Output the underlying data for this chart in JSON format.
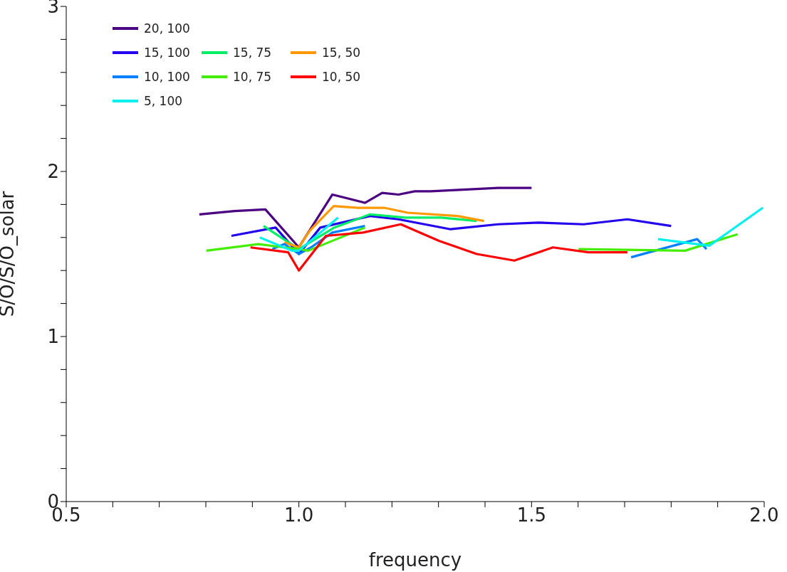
{
  "chart_data": {
    "type": "line",
    "xlabel": "frequency",
    "ylabel": "S/O/S/O_solar",
    "xlim": [
      0.5,
      2.0
    ],
    "ylim": [
      0,
      3
    ],
    "xticks": [
      0.5,
      {
        "value": 0.6,
        "label": null
      },
      {
        "value": 0.7,
        "label": null
      },
      {
        "value": 0.8,
        "label": null
      },
      {
        "value": 0.9,
        "label": null
      },
      {
        "value": 1,
        "label": "1.0"
      },
      {
        "value": 1.1,
        "label": null
      },
      {
        "value": 1.2,
        "label": null
      },
      {
        "value": 1.3,
        "label": null
      },
      {
        "value": 1.4,
        "label": null
      },
      1.5,
      {
        "value": 1.6,
        "label": null
      },
      {
        "value": 1.7,
        "label": null
      },
      {
        "value": 1.8,
        "label": null
      },
      {
        "value": 1.9,
        "label": null
      },
      {
        "value": 2,
        "label": "2.0"
      }
    ],
    "yticks": [
      0,
      {
        "value": 0.2,
        "label": null
      },
      {
        "value": 0.4,
        "label": null
      },
      {
        "value": 0.6,
        "label": null
      },
      {
        "value": 0.8,
        "label": null
      },
      1,
      {
        "value": 1.2,
        "label": null
      },
      {
        "value": 1.4,
        "label": null
      },
      {
        "value": 1.6,
        "label": null
      },
      {
        "value": 1.8,
        "label": null
      },
      2,
      {
        "value": 2.2,
        "label": null
      },
      {
        "value": 2.4,
        "label": null
      },
      {
        "value": 2.6,
        "label": null
      },
      {
        "value": 2.8,
        "label": null
      },
      3
    ],
    "grid": false,
    "legend": "top left",
    "marker": "none",
    "line_style": "solid",
    "series": [
      {
        "name": "20, 100",
        "color": "#4b0082",
        "x": [
          0.786,
          0.862,
          0.928,
          1.0,
          1.072,
          1.142,
          1.179,
          1.214,
          1.249,
          1.283,
          1.428,
          1.5
        ],
        "values": [
          1.74,
          1.76,
          1.77,
          1.54,
          1.86,
          1.81,
          1.87,
          1.86,
          1.88,
          1.88,
          1.9,
          1.9
        ]
      },
      {
        "name": "15, 100",
        "color": "#2200ee",
        "x": [
          0.855,
          0.95,
          1.0,
          1.046,
          1.153,
          1.214,
          1.326,
          1.428,
          1.515,
          1.612,
          1.706,
          1.8
        ],
        "values": [
          1.61,
          1.66,
          1.5,
          1.66,
          1.73,
          1.71,
          1.65,
          1.68,
          1.69,
          1.68,
          1.71,
          1.67
        ]
      },
      {
        "name": "15, 75",
        "color": "#00ee66",
        "x": [
          0.924,
          1.0,
          1.076,
          1.153,
          1.229,
          1.306,
          1.382
        ],
        "values": [
          1.67,
          1.53,
          1.66,
          1.74,
          1.72,
          1.72,
          1.7
        ]
      },
      {
        "name": "15, 50",
        "color": "#ff9900",
        "x": [
          0.969,
          1.0,
          1.023,
          1.075,
          1.127,
          1.183,
          1.234,
          1.341,
          1.398
        ],
        "values": [
          1.57,
          1.54,
          1.64,
          1.79,
          1.78,
          1.78,
          1.75,
          1.73,
          1.7
        ]
      },
      {
        "name": "10, 100",
        "color": "#0080ff",
        "x": [
          0.943,
          0.969,
          1.0,
          1.026,
          1.072,
          1.142,
          1.43,
          1.714,
          1.856,
          1.876
        ],
        "values": [
          1.53,
          1.56,
          1.5,
          1.54,
          1.63,
          1.67,
          null,
          1.48,
          1.59,
          1.53
        ]
      },
      {
        "name": "10, 75",
        "color": "#44ee00",
        "x": [
          0.801,
          0.913,
          0.969,
          1.0,
          1.02,
          1.142,
          1.37,
          1.601,
          1.83,
          1.943
        ],
        "values": [
          1.52,
          1.56,
          1.54,
          1.53,
          1.52,
          1.66,
          null,
          1.53,
          1.52,
          1.62
        ]
      },
      {
        "name": "10, 50",
        "color": "#ff0000",
        "x": [
          0.896,
          0.977,
          1.0,
          1.058,
          1.138,
          1.219,
          1.301,
          1.382,
          1.463,
          1.546,
          1.622,
          1.706
        ],
        "values": [
          1.54,
          1.51,
          1.4,
          1.61,
          1.63,
          1.68,
          1.58,
          1.5,
          1.46,
          1.54,
          1.51,
          1.51
        ]
      },
      {
        "name": "5, 100",
        "color": "#00f0f0",
        "x": [
          0.916,
          0.985,
          1.0,
          1.084,
          1.43,
          1.772,
          1.882,
          1.997
        ],
        "values": [
          1.6,
          1.52,
          1.52,
          1.72,
          null,
          1.59,
          1.55,
          1.78
        ]
      }
    ]
  }
}
